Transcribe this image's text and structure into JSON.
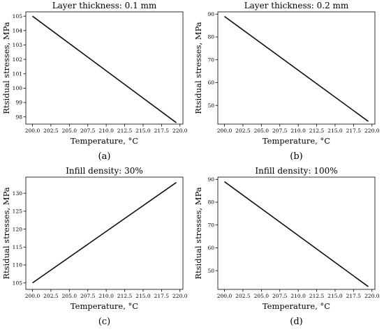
{
  "chart_data": [
    {
      "id": "a",
      "type": "line",
      "title": "Layer thickness: 0.1 mm",
      "xlabel": "Temperature, °C",
      "ylabel": "Rtsidual stresses, MPa",
      "caption": "(a)",
      "x_ticks": [
        "200.0",
        "202.5",
        "205.0",
        "207.5",
        "210.0",
        "212.5",
        "215.0",
        "217.5",
        "220.0"
      ],
      "y_ticks": [
        "98",
        "99",
        "100",
        "101",
        "102",
        "103",
        "104",
        "105"
      ],
      "xlim": [
        199.1,
        220.4
      ],
      "ylim": [
        97.5,
        105.3
      ],
      "grid": false,
      "series": [
        {
          "x": [
            200.0,
            219.5
          ],
          "y": [
            105.0,
            97.6
          ]
        }
      ]
    },
    {
      "id": "b",
      "type": "line",
      "title": "Layer thickness: 0.2 mm",
      "xlabel": "Temperature, °C",
      "ylabel": "Rtsidual stresses, MPa",
      "caption": "(b)",
      "x_ticks": [
        "200.0",
        "202.5",
        "205.0",
        "207.5",
        "210.0",
        "212.5",
        "215.0",
        "217.5",
        "220.0"
      ],
      "y_ticks": [
        "50",
        "60",
        "70",
        "80",
        "90"
      ],
      "xlim": [
        199.1,
        220.4
      ],
      "ylim": [
        41.8,
        91
      ],
      "grid": false,
      "series": [
        {
          "x": [
            200.0,
            219.5
          ],
          "y": [
            89.0,
            43.0
          ]
        }
      ]
    },
    {
      "id": "c",
      "type": "line",
      "title": "Infill density: 30%",
      "xlabel": "Temperature, °C",
      "ylabel": "Rtsidual stresses, MPa",
      "caption": "(c)",
      "x_ticks": [
        "200.0",
        "202.5",
        "205.0",
        "207.5",
        "210.0",
        "212.5",
        "215.0",
        "217.5",
        "220.0"
      ],
      "y_ticks": [
        "105",
        "110",
        "115",
        "120",
        "125",
        "130"
      ],
      "xlim": [
        199.1,
        220.4
      ],
      "ylim": [
        103.2,
        134.5
      ],
      "grid": false,
      "series": [
        {
          "x": [
            200.0,
            219.5
          ],
          "y": [
            105.0,
            133.0
          ]
        }
      ]
    },
    {
      "id": "d",
      "type": "line",
      "title": "Infill density: 100%",
      "xlabel": "Temperature, °C",
      "ylabel": "Rtsidual stresses, MPa",
      "caption": "(d)",
      "x_ticks": [
        "200.0",
        "202.5",
        "205.0",
        "207.5",
        "210.0",
        "212.5",
        "215.0",
        "217.5",
        "220.0"
      ],
      "y_ticks": [
        "50",
        "60",
        "70",
        "80",
        "90"
      ],
      "xlim": [
        199.1,
        220.4
      ],
      "ylim": [
        41.8,
        91
      ],
      "grid": false,
      "series": [
        {
          "x": [
            200.0,
            219.5
          ],
          "y": [
            89.0,
            43.0
          ]
        }
      ]
    }
  ]
}
